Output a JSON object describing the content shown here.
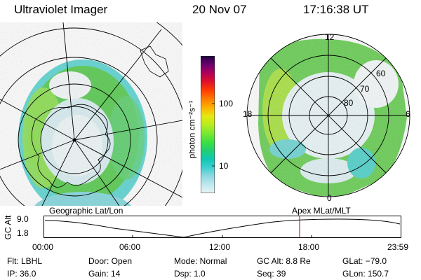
{
  "header": {
    "instrument": "Ultraviolet Imager",
    "date": "20 Nov 07",
    "time": "17:16:38 UT"
  },
  "left_panel": {
    "label": "Geographic Lat/Lon"
  },
  "right_panel": {
    "label": "Apex  MLat/MLT",
    "mlt_labels": [
      "12",
      "18",
      "6",
      "0"
    ],
    "lat_labels": [
      "60",
      "70",
      "80"
    ]
  },
  "colorbar": {
    "unit_label": "photon cm⁻²s⁻¹",
    "ticks": [
      "100",
      "10"
    ],
    "colors": [
      "#e8f4f6",
      "#bfe8ee",
      "#8fd8e2",
      "#3ccfd0",
      "#10c8b0",
      "#20d070",
      "#3ee040",
      "#7ce830",
      "#b8ec20",
      "#e6e810",
      "#ffb000",
      "#ff7a00",
      "#ff3c00",
      "#e0102a",
      "#b0005a",
      "#6a0070",
      "#200040"
    ]
  },
  "timeline": {
    "y_axis_label": "GC Alt",
    "y_ticks": [
      "9.0",
      "1.8"
    ],
    "x_ticks": [
      "00:00",
      "06:00",
      "12:00",
      "18:00",
      "23:59"
    ],
    "marker_color": "#a00020"
  },
  "footer": {
    "flt": "Flt: LBHL",
    "ip": "IP: 36.0",
    "door": "Door: Open",
    "gain": "Gain: 14",
    "mode": "Mode: Normal",
    "dsp": "Dsp:    1.0",
    "gc_alt": "GC Alt: 8.8 Re",
    "seq": "Seq: 39",
    "glat": "GLat: −79.0",
    "glon": "GLon: 150.7"
  }
}
